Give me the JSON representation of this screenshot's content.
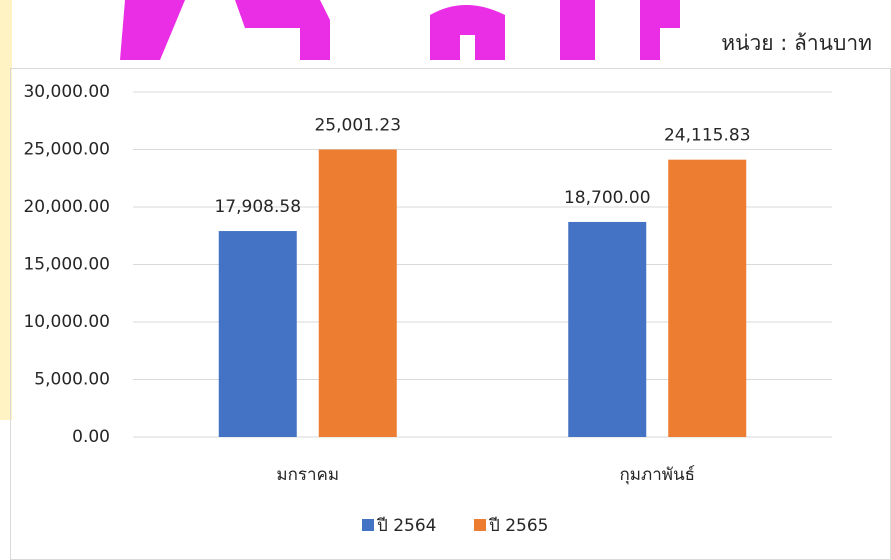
{
  "chart_data": {
    "type": "bar",
    "annotation": "หน่วย : ล้านบาท",
    "categories": [
      "มกราคม",
      "กุมภาพันธ์"
    ],
    "series": [
      {
        "name": "ปี 2564",
        "color": "#4472c4",
        "values": [
          17908.58,
          18700.0
        ],
        "value_labels": [
          "17,908.58",
          "18,700.00"
        ]
      },
      {
        "name": "ปี 2565",
        "color": "#ed7d31",
        "values": [
          25001.23,
          24115.83
        ],
        "value_labels": [
          "25,001.23",
          "24,115.83"
        ]
      }
    ],
    "ylim": [
      0,
      30000
    ],
    "yticks": [
      {
        "value": 0,
        "label": "0.00"
      },
      {
        "value": 5000,
        "label": "5,000.00"
      },
      {
        "value": 10000,
        "label": "10,000.00"
      },
      {
        "value": 15000,
        "label": "15,000.00"
      },
      {
        "value": 20000,
        "label": "20,000.00"
      },
      {
        "value": 25000,
        "label": "25,000.00"
      },
      {
        "value": 30000,
        "label": "30,000.00"
      }
    ],
    "grid": true,
    "legend": "bottom"
  }
}
